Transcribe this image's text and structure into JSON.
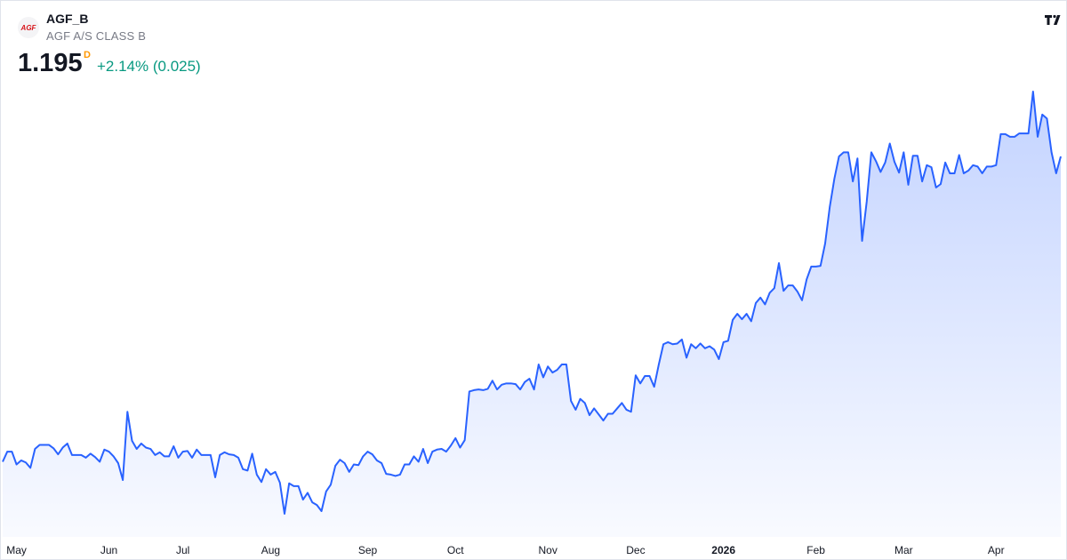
{
  "header": {
    "symbol": "AGF_B",
    "name": "AGF A/S CLASS B",
    "price": "1.195",
    "interval": "D",
    "change": "+2.14% (0.025)",
    "logo_text": "AGF"
  },
  "chart_data": {
    "type": "area",
    "color": "#2962ff",
    "values": [
      0.743,
      0.758,
      0.758,
      0.739,
      0.745,
      0.742,
      0.734,
      0.762,
      0.768,
      0.768,
      0.768,
      0.763,
      0.754,
      0.764,
      0.77,
      0.753,
      0.753,
      0.753,
      0.749,
      0.755,
      0.75,
      0.743,
      0.761,
      0.758,
      0.751,
      0.741,
      0.716,
      0.817,
      0.774,
      0.762,
      0.77,
      0.764,
      0.762,
      0.753,
      0.757,
      0.751,
      0.751,
      0.766,
      0.749,
      0.758,
      0.759,
      0.749,
      0.761,
      0.753,
      0.753,
      0.753,
      0.72,
      0.753,
      0.757,
      0.754,
      0.753,
      0.749,
      0.732,
      0.73,
      0.755,
      0.724,
      0.713,
      0.732,
      0.724,
      0.728,
      0.712,
      0.666,
      0.711,
      0.707,
      0.707,
      0.687,
      0.697,
      0.683,
      0.679,
      0.67,
      0.699,
      0.709,
      0.737,
      0.746,
      0.741,
      0.728,
      0.739,
      0.738,
      0.751,
      0.758,
      0.754,
      0.745,
      0.741,
      0.725,
      0.724,
      0.722,
      0.724,
      0.739,
      0.739,
      0.751,
      0.743,
      0.762,
      0.741,
      0.758,
      0.761,
      0.762,
      0.758,
      0.767,
      0.778,
      0.764,
      0.775,
      0.847,
      0.849,
      0.85,
      0.849,
      0.851,
      0.863,
      0.85,
      0.857,
      0.859,
      0.859,
      0.858,
      0.85,
      0.861,
      0.866,
      0.85,
      0.887,
      0.868,
      0.884,
      0.875,
      0.879,
      0.887,
      0.887,
      0.833,
      0.82,
      0.836,
      0.83,
      0.812,
      0.822,
      0.813,
      0.804,
      0.814,
      0.814,
      0.822,
      0.83,
      0.82,
      0.817,
      0.871,
      0.859,
      0.87,
      0.87,
      0.854,
      0.887,
      0.917,
      0.92,
      0.917,
      0.918,
      0.924,
      0.897,
      0.917,
      0.911,
      0.918,
      0.911,
      0.914,
      0.909,
      0.895,
      0.92,
      0.922,
      0.953,
      0.962,
      0.954,
      0.962,
      0.951,
      0.978,
      0.986,
      0.976,
      0.993,
      1.0,
      1.037,
      0.996,
      1.004,
      1.004,
      0.995,
      0.982,
      1.013,
      1.032,
      1.032,
      1.033,
      1.066,
      1.12,
      1.162,
      1.195,
      1.201,
      1.201,
      1.158,
      1.192,
      1.07,
      1.128,
      1.201,
      1.188,
      1.172,
      1.186,
      1.214,
      1.187,
      1.171,
      1.201,
      1.153,
      1.196,
      1.196,
      1.158,
      1.182,
      1.179,
      1.149,
      1.154,
      1.186,
      1.17,
      1.17,
      1.197,
      1.17,
      1.174,
      1.182,
      1.18,
      1.17,
      1.18,
      1.18,
      1.182,
      1.228,
      1.228,
      1.224,
      1.224,
      1.229,
      1.229,
      1.229,
      1.291,
      1.224,
      1.257,
      1.251,
      1.201,
      1.17,
      1.195
    ],
    "xticks": [
      {
        "value": 3,
        "label": "May"
      },
      {
        "value": 23,
        "label": "Jun"
      },
      {
        "value": 39,
        "label": "Jul"
      },
      {
        "value": 58,
        "label": "Aug"
      },
      {
        "value": 79,
        "label": "Sep"
      },
      {
        "value": 98,
        "label": "Oct"
      },
      {
        "value": 118,
        "label": "Nov"
      },
      {
        "value": 137,
        "label": "Dec"
      },
      {
        "value": 156,
        "label": "2026"
      },
      {
        "value": 176,
        "label": "Feb"
      },
      {
        "value": 195,
        "label": "Mar"
      },
      {
        "value": 215,
        "label": "Apr"
      }
    ]
  }
}
